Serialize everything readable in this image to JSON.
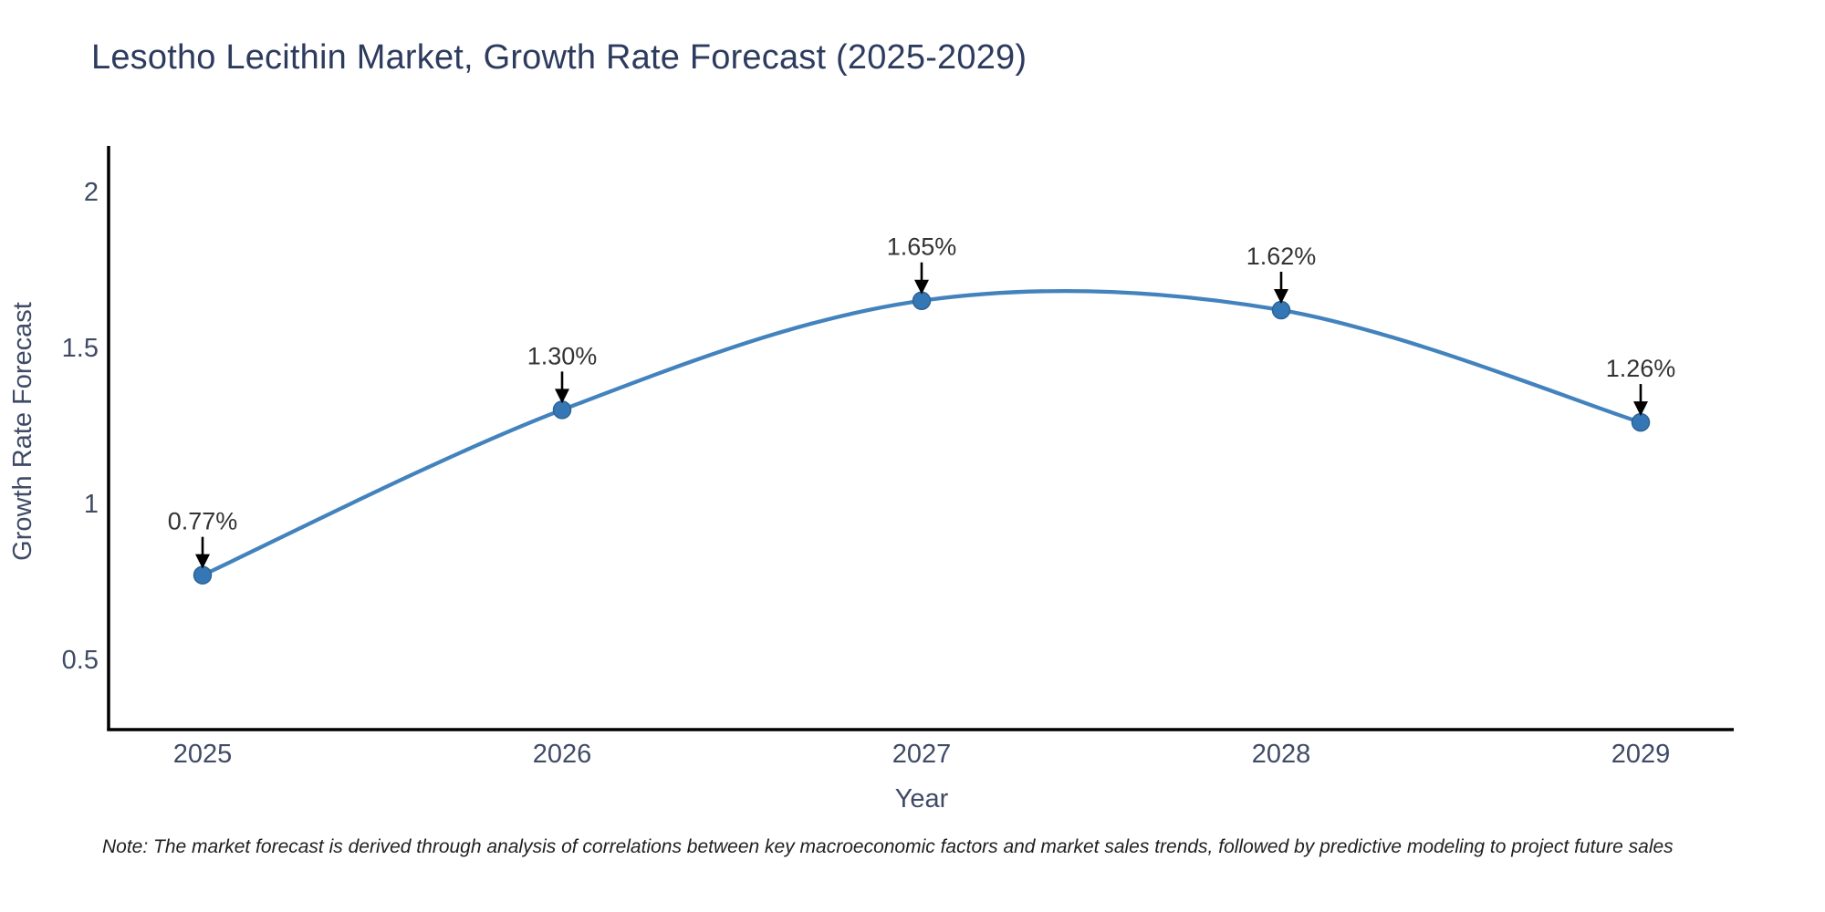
{
  "title": "Lesotho Lecithin Market, Growth Rate Forecast (2025-2029)",
  "note": "Note: The market forecast is derived through analysis of correlations between key macroeconomic factors and market sales trends, followed by predictive modeling to project future sales",
  "colors": {
    "line": "#4383bd",
    "marker_fill": "#3577b4",
    "marker_edge": "#2d6397",
    "axis": "#000000",
    "tick_text": "#3f4b66",
    "title_text": "#2d3b5e",
    "annotation_text": "#333333",
    "arrow": "#000000",
    "background": "#ffffff"
  },
  "chart_data": {
    "type": "line",
    "line_shape": "spline",
    "title": "Lesotho Lecithin Market, Growth Rate Forecast (2025-2029)",
    "xlabel": "Year",
    "ylabel": "Growth Rate Forecast",
    "x": [
      2025,
      2026,
      2027,
      2028,
      2029
    ],
    "y": [
      0.77,
      1.3,
      1.65,
      1.62,
      1.26
    ],
    "point_labels": [
      "0.77%",
      "1.30%",
      "1.65%",
      "1.62%",
      "1.26%"
    ],
    "x_tick_labels": [
      "2025",
      "2026",
      "2027",
      "2028",
      "2029"
    ],
    "y_tick_labels": [
      "2",
      "1.5",
      "1",
      "0.5"
    ],
    "y_tick_values": [
      2,
      1.5,
      1,
      0.5
    ],
    "xlim": [
      2024.74,
      2029.26
    ],
    "ylim": [
      0.28,
      2.15
    ],
    "grid": false,
    "legend": false,
    "markers": true,
    "annotations_arrows": true
  }
}
